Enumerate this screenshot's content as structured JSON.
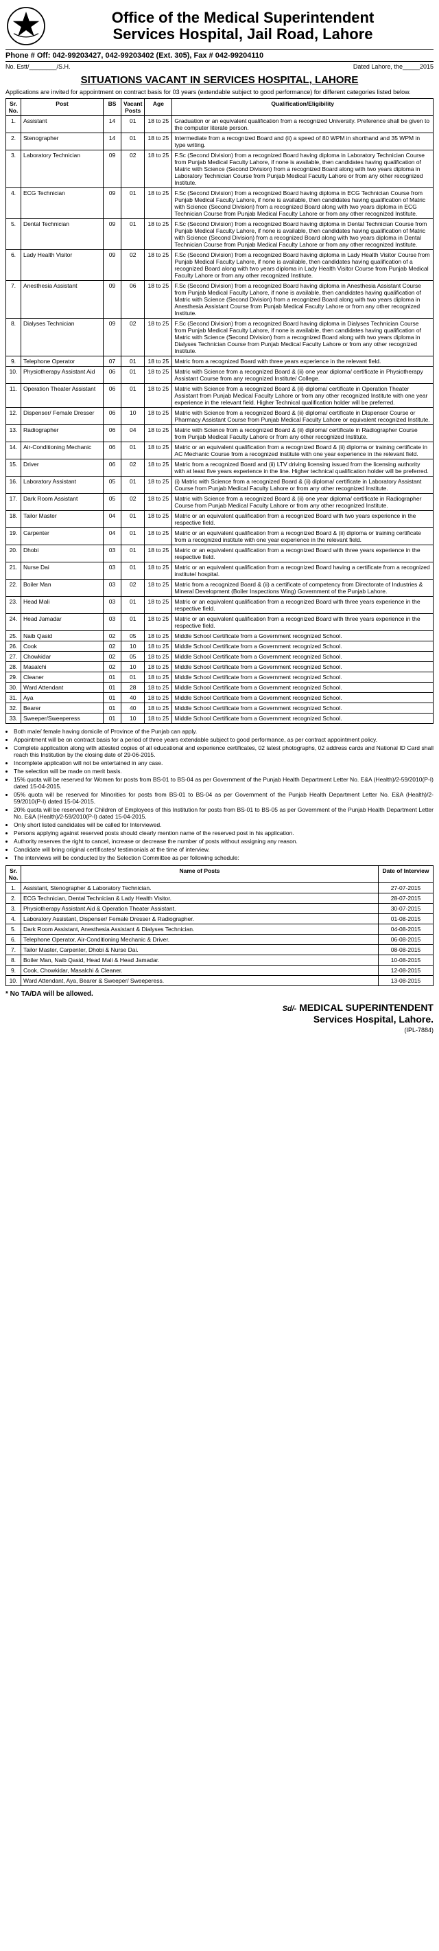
{
  "header": {
    "org_title_line1": "Office of the Medical Superintendent",
    "org_title_line2": "Services Hospital, Jail Road, Lahore",
    "contact": "Phone # Off: 042-99203427, 042-99203402 (Ext. 305), Fax # 042-99204110",
    "ref_left": "No. Estt/________/S.H.",
    "ref_right": "Dated Lahore, the_____2015",
    "situations": "SITUATIONS VACANT IN SERVICES HOSPITAL, LAHORE",
    "intro": "Applications are invited for appointment on contract basis for 03 years (extendable subject to good performance) for different categories listed below."
  },
  "columns": {
    "sr": "Sr. No.",
    "post": "Post",
    "bs": "BS",
    "vacant": "Vacant Posts",
    "age": "Age",
    "qual": "Qualification/Eligibility"
  },
  "posts": [
    {
      "sr": "1.",
      "post": "Assistant",
      "bs": "14",
      "vac": "01",
      "age": "18 to 25",
      "qual": "Graduation or an equivalent qualification from a recognized University. Preference shall be given to the computer literate person."
    },
    {
      "sr": "2.",
      "post": "Stenographer",
      "bs": "14",
      "vac": "01",
      "age": "18 to 25",
      "qual": "Intermediate from a recognized Board and (ii) a speed of 80 WPM in shorthand and 35 WPM in type writing."
    },
    {
      "sr": "3.",
      "post": "Laboratory Technician",
      "bs": "09",
      "vac": "02",
      "age": "18 to 25",
      "qual": "F.Sc (Second Division) from a recognized Board having diploma in Laboratory Technician Course from Punjab Medical Faculty Lahore, if none is available, then candidates having qualification of Matric with Science (Second Division) from a recognized Board along with two years diploma in Laboratory Technician Course from Punjab Medical Faculty Lahore or from any other recognized Institute."
    },
    {
      "sr": "4.",
      "post": "ECG Technician",
      "bs": "09",
      "vac": "01",
      "age": "18 to 25",
      "qual": "F.Sc (Second Division) from a recognized Board having diploma in ECG Technician Course from Punjab Medical Faculty Lahore, if none is available, then candidates having qualification of Matric with Science (Second Division) from a recognized Board along with two years diploma in ECG Technician Course from Punjab Medical Faculty Lahore or from any other recognized Institute."
    },
    {
      "sr": "5.",
      "post": "Dental Technician",
      "bs": "09",
      "vac": "01",
      "age": "18 to 25",
      "qual": "F.Sc (Second Division) from a recognized Board having diploma in Dental Technician Course from Punjab Medical Faculty Lahore, if none is available, then candidates having qualification of Matric with Science (Second Division) from a recognized Board along with two years diploma in Dental Technician Course from Punjab Medical Faculty Lahore or from any other recognized Institute."
    },
    {
      "sr": "6.",
      "post": "Lady Health Visitor",
      "bs": "09",
      "vac": "02",
      "age": "18 to 25",
      "qual": "F.Sc (Second Division) from a recognized Board having diploma in Lady Health Visitor Course from Punjab Medical Faculty Lahore, if none is available, then candidates having qualification of a recognized Board along with two years diploma in Lady Health Visitor Course from Punjab Medical Faculty Lahore or from any other recognized Institute."
    },
    {
      "sr": "7.",
      "post": "Anesthesia Assistant",
      "bs": "09",
      "vac": "06",
      "age": "18 to 25",
      "qual": "F.Sc (Second Division) from a recognized Board having diploma in Anesthesia Assistant Course from Punjab Medical Faculty Lahore, if none is available, then candidates having qualification of Matric with Science (Second Division) from a recognized Board along with two years diploma in Anesthesia Assistant Course from Punjab Medical Faculty Lahore or from any other recognized Institute."
    },
    {
      "sr": "8.",
      "post": "Dialyses Technician",
      "bs": "09",
      "vac": "02",
      "age": "18 to 25",
      "qual": "F.Sc (Second Division) from a recognized Board having diploma in Dialyses Technician Course from Punjab Medical Faculty Lahore, if none is available, then candidates having qualification of Matric with Science (Second Division) from a recognized Board along with two years diploma in Dialyses Technician Course from Punjab Medical Faculty Lahore or from any other recognized Institute."
    },
    {
      "sr": "9.",
      "post": "Telephone Operator",
      "bs": "07",
      "vac": "01",
      "age": "18 to 25",
      "qual": "Matric from a recognized Board with three years experience in the relevant field."
    },
    {
      "sr": "10.",
      "post": "Physiotherapy Assistant Aid",
      "bs": "06",
      "vac": "01",
      "age": "18 to 25",
      "qual": "Matric with Science from a recognized Board & (ii) one year diploma/ certificate in Physiotherapy Assistant Course from any recognized Institute/ College."
    },
    {
      "sr": "11.",
      "post": "Operation Theater Assistant",
      "bs": "06",
      "vac": "01",
      "age": "18 to 25",
      "qual": "Matric with Science from a recognized Board & (ii) diploma/ certificate in Operation Theater Assistant from Punjab Medical Faculty Lahore or from any other recognized Institute with one year experience in the relevant field. Higher Technical qualification holder will be preferred."
    },
    {
      "sr": "12.",
      "post": "Dispenser/ Female Dresser",
      "bs": "06",
      "vac": "10",
      "age": "18 to 25",
      "qual": "Matric with Science from a recognized Board & (ii) diploma/ certificate in Dispenser Course or Pharmacy Assistant Course from Punjab Medical Faculty Lahore or equivalent recognized Institute."
    },
    {
      "sr": "13.",
      "post": "Radiographer",
      "bs": "06",
      "vac": "04",
      "age": "18 to 25",
      "qual": "Matric with Science from a recognized Board & (ii) diploma/ certificate in Radiographer Course from Punjab Medical Faculty Lahore or from any other recognized Institute."
    },
    {
      "sr": "14.",
      "post": "Air-Conditioning Mechanic",
      "bs": "06",
      "vac": "01",
      "age": "18 to 25",
      "qual": "Matric or an equivalent qualification from a recognized Board & (ii) diploma or training certificate in AC Mechanic Course from a recognized institute with one year experience in the relevant field."
    },
    {
      "sr": "15.",
      "post": "Driver",
      "bs": "06",
      "vac": "02",
      "age": "18 to 25",
      "qual": "Matric from a recognized Board and (ii) LTV driving licensing issued from the licensing authority with at least five years experience in the line. Higher technical qualification holder will be preferred."
    },
    {
      "sr": "16.",
      "post": "Laboratory Assistant",
      "bs": "05",
      "vac": "01",
      "age": "18 to 25",
      "qual": "(i) Matric with Science from a recognized Board & (ii) diploma/ certificate in Laboratory Assistant Course from Punjab Medical Faculty Lahore or from any other recognized Institute."
    },
    {
      "sr": "17.",
      "post": "Dark Room Assistant",
      "bs": "05",
      "vac": "02",
      "age": "18 to 25",
      "qual": "Matric with Science from a recognized Board & (ii) one year diploma/ certificate in Radiographer Course from Punjab Medical Faculty Lahore or from any other recognized Institute."
    },
    {
      "sr": "18.",
      "post": "Tailor Master",
      "bs": "04",
      "vac": "01",
      "age": "18 to 25",
      "qual": "Matric or an equivalent qualification from a recognized Board with two years experience in the respective field."
    },
    {
      "sr": "19.",
      "post": "Carpenter",
      "bs": "04",
      "vac": "01",
      "age": "18 to 25",
      "qual": "Matric or an equivalent qualification from a recognized Board & (ii) diploma or training certificate from a recognized institute with one year experience in the relevant field."
    },
    {
      "sr": "20.",
      "post": "Dhobi",
      "bs": "03",
      "vac": "01",
      "age": "18 to 25",
      "qual": "Matric or an equivalent qualification from a recognized Board with three years experience in the respective field."
    },
    {
      "sr": "21.",
      "post": "Nurse Dai",
      "bs": "03",
      "vac": "01",
      "age": "18 to 25",
      "qual": "Matric or an equivalent qualification from a recognized Board having a certificate from a recognized institute/ hospital."
    },
    {
      "sr": "22.",
      "post": "Boiler Man",
      "bs": "03",
      "vac": "02",
      "age": "18 to 25",
      "qual": "Matric from a recognized Board & (ii) a certificate of competency from Directorate of Industries & Mineral Development (Boiler Inspections Wing) Government of the Punjab Lahore."
    },
    {
      "sr": "23.",
      "post": "Head Mali",
      "bs": "03",
      "vac": "01",
      "age": "18 to 25",
      "qual": "Matric or an equivalent qualification from a recognized Board with three years experience in the respective field."
    },
    {
      "sr": "24.",
      "post": "Head Jamadar",
      "bs": "03",
      "vac": "01",
      "age": "18 to 25",
      "qual": "Matric or an equivalent qualification from a recognized Board with three years experience in the respective field."
    },
    {
      "sr": "25.",
      "post": "Naib Qasid",
      "bs": "02",
      "vac": "05",
      "age": "18 to 25",
      "qual": "Middle School Certificate from a Government recognized School."
    },
    {
      "sr": "26.",
      "post": "Cook",
      "bs": "02",
      "vac": "10",
      "age": "18 to 25",
      "qual": "Middle School Certificate from a Government recognized School."
    },
    {
      "sr": "27.",
      "post": "Chowkidar",
      "bs": "02",
      "vac": "05",
      "age": "18 to 25",
      "qual": "Middle School Certificate from a Government recognized School."
    },
    {
      "sr": "28.",
      "post": "Masalchi",
      "bs": "02",
      "vac": "10",
      "age": "18 to 25",
      "qual": "Middle School Certificate from a Government recognized School."
    },
    {
      "sr": "29.",
      "post": "Cleaner",
      "bs": "01",
      "vac": "01",
      "age": "18 to 25",
      "qual": "Middle School Certificate from a Government recognized School."
    },
    {
      "sr": "30.",
      "post": "Ward Attendant",
      "bs": "01",
      "vac": "28",
      "age": "18 to 25",
      "qual": "Middle School Certificate from a Government recognized School."
    },
    {
      "sr": "31.",
      "post": "Aya",
      "bs": "01",
      "vac": "40",
      "age": "18 to 25",
      "qual": "Middle School Certificate from a Government recognized School."
    },
    {
      "sr": "32.",
      "post": "Bearer",
      "bs": "01",
      "vac": "40",
      "age": "18 to 25",
      "qual": "Middle School Certificate from a Government recognized School."
    },
    {
      "sr": "33.",
      "post": "Sweeper/Sweeperess",
      "bs": "01",
      "vac": "10",
      "age": "18 to 25",
      "qual": "Middle School Certificate from a Government recognized School."
    }
  ],
  "notes": [
    "Both male/ female having domicile of Province of the Punjab can apply.",
    "Appointment will be on contract basis for a period of three years extendable subject to good performance, as per contract appointment policy.",
    "Complete application along with attested copies of all educational and experience certificates, 02 latest photographs, 02 address cards and National ID Card shall reach this Institution by the closing date of 29-06-2015.",
    "Incomplete application will not be entertained in any case.",
    "The selection will be made on merit basis.",
    "15% quota will be reserved for Women for posts from BS-01 to BS-04 as per Government of the Punjab Health Department Letter No. E&A (Health)/2-59/2010(P-I) dated 15-04-2015.",
    "05% quota will be reserved for Minorities for posts from BS-01 to BS-04 as per Government of the Punjab Health Department Letter No. E&A (Health)/2-59/2010(P-I) dated 15-04-2015.",
    "20% quota will be reserved for Children of Employees of this Institution for posts from BS-01 to BS-05 as per Government of the Punjab Health Department Letter No. E&A (Health)/2-59/2010(P-I) dated 15-04-2015.",
    "Only short listed candidates will be called for Interviewed.",
    "Persons applying against reserved posts should clearly mention name of the reserved post in his application.",
    "Authority reserves the right to cancel, increase or decrease the number of posts without assigning any reason.",
    "Candidate will bring original certificates/ testimonials at the time of interview.",
    "The interviews will be conducted by the Selection Committee as per following schedule:"
  ],
  "sched_columns": {
    "sr": "Sr. No.",
    "name": "Name of Posts",
    "date": "Date of Interview"
  },
  "schedule": [
    {
      "sr": "1.",
      "name": "Assistant, Stenographer & Laboratory Technician.",
      "date": "27-07-2015"
    },
    {
      "sr": "2.",
      "name": "ECG Technician, Dental Technician & Lady Health Visitor.",
      "date": "28-07-2015"
    },
    {
      "sr": "3.",
      "name": "Physiotherapy Assistant Aid & Operation Theater Assistant.",
      "date": "30-07-2015"
    },
    {
      "sr": "4.",
      "name": "Laboratory Assistant, Dispenser/ Female Dresser & Radiographer.",
      "date": "01-08-2015"
    },
    {
      "sr": "5.",
      "name": "Dark Room Assistant, Anesthesia Assistant & Dialyses Technician.",
      "date": "04-08-2015"
    },
    {
      "sr": "6.",
      "name": "Telephone Operator, Air-Conditioning Mechanic & Driver.",
      "date": "06-08-2015"
    },
    {
      "sr": "7.",
      "name": "Tailor Master, Carpenter, Dhobi & Nurse Dai.",
      "date": "08-08-2015"
    },
    {
      "sr": "8.",
      "name": "Boiler Man, Naib Qasid, Head Mali & Head Jamadar.",
      "date": "10-08-2015"
    },
    {
      "sr": "9.",
      "name": "Cook, Chowkidar, Masalchi & Cleaner.",
      "date": "12-08-2015"
    },
    {
      "sr": "10.",
      "name": "Ward Attendant, Aya, Bearer & Sweeper/ Sweeperess.",
      "date": "13-08-2015"
    }
  ],
  "no_tada": "*   No TA/DA will be allowed.",
  "signature": {
    "sd": "Sd/-",
    "line1": "MEDICAL SUPERINTENDENT",
    "line2": "Services Hospital, Lahore."
  },
  "ipl": "(IPL-7884)"
}
